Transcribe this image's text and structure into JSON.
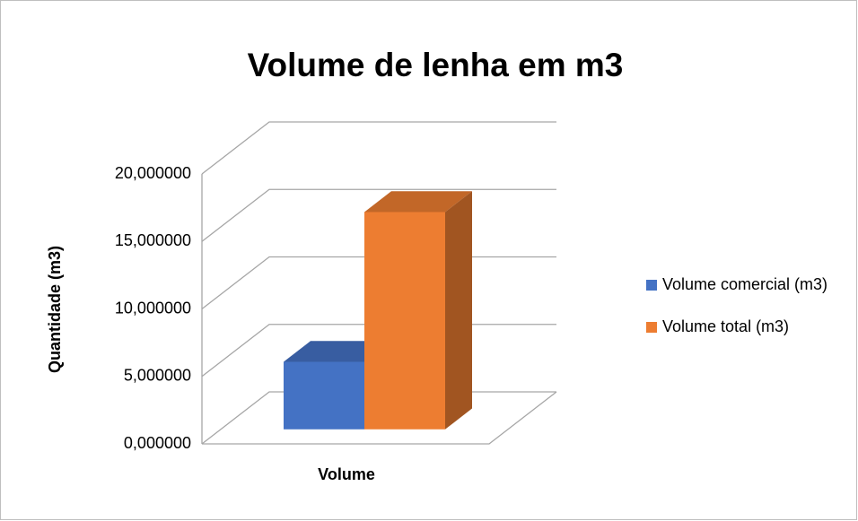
{
  "chart_data": {
    "type": "bar3d",
    "title": "Volume de lenha em m3",
    "y_label": "Quantidade (m3)",
    "categories": [
      "Volume"
    ],
    "series": [
      {
        "name": "Volume comercial (m3)",
        "color": "#4472c4",
        "values": [
          5.0
        ]
      },
      {
        "name": "Volume total (m3)",
        "color": "#ed7d31",
        "values": [
          16.1
        ]
      }
    ],
    "ylim": [
      0,
      20
    ],
    "yticks": [
      {
        "value": 0,
        "label": "0,000000"
      },
      {
        "value": 5,
        "label": "5,000000"
      },
      {
        "value": 10,
        "label": "10,000000"
      },
      {
        "value": 15,
        "label": "15,000000"
      },
      {
        "value": 20,
        "label": "20,000000"
      }
    ],
    "grid": true,
    "legend": "right"
  }
}
